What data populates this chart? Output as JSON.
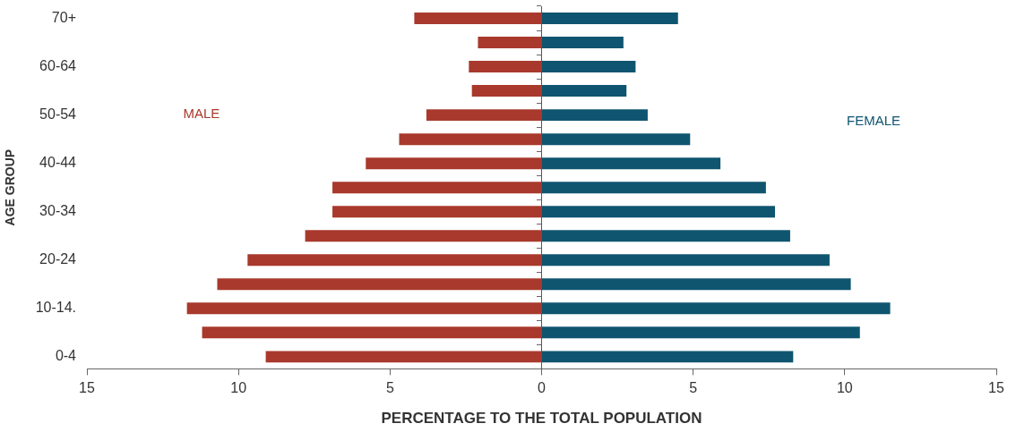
{
  "chart_data": {
    "type": "bar",
    "orientation": "horizontal",
    "stacked": true,
    "xlabel": "PERCENTAGE TO THE TOTAL POPULATION",
    "ylabel": "AGE GROUP",
    "categories": [
      "70+",
      null,
      "60-64",
      null,
      "50-54",
      null,
      "40-44",
      null,
      "30-34",
      null,
      "20-24",
      null,
      "10-14.",
      null,
      "0-4"
    ],
    "series": [
      {
        "name": "MALE",
        "color": "#a8392c",
        "values": [
          -4.2,
          -2.1,
          -2.4,
          -2.3,
          -3.8,
          -4.7,
          -5.8,
          -6.9,
          -6.9,
          -7.8,
          -9.7,
          -10.7,
          -11.7,
          -11.2,
          -9.1
        ]
      },
      {
        "name": "FEMALE",
        "color": "#0f5570",
        "values": [
          4.5,
          2.7,
          3.1,
          2.8,
          3.5,
          4.9,
          5.9,
          7.4,
          7.7,
          8.2,
          9.5,
          10.2,
          11.5,
          10.5,
          8.3
        ]
      }
    ],
    "xlim": [
      -15,
      15
    ],
    "xticks": [
      {
        "value": -15,
        "label": "15"
      },
      {
        "value": -10,
        "label": "10"
      },
      {
        "value": -5,
        "label": "5"
      },
      0,
      5,
      10,
      15
    ],
    "ref_lines": [
      {
        "axis": "x",
        "value": 0
      }
    ],
    "grid": false,
    "legend": false
  }
}
